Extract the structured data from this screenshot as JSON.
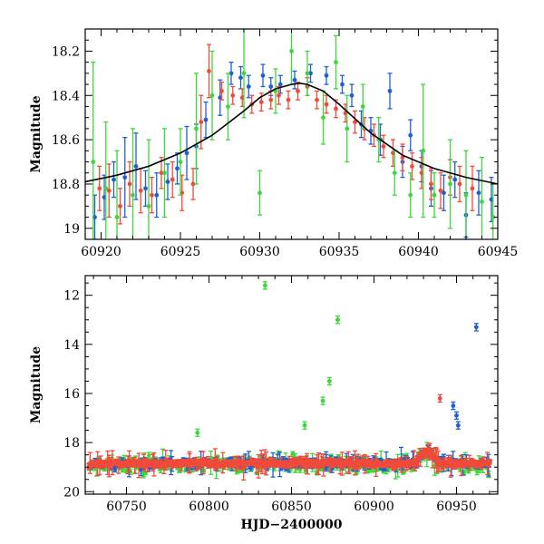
{
  "chart_data": [
    {
      "type": "scatter",
      "title": "",
      "xlabel": "",
      "ylabel": "Magnitude",
      "xlim": [
        60919,
        60945
      ],
      "ylim": [
        19.05,
        18.1
      ],
      "y_inverted": true,
      "xticks": [
        60920,
        60925,
        60930,
        60935,
        60940,
        60945
      ],
      "yticks": [
        18.2,
        18.4,
        18.6,
        18.8,
        19
      ],
      "ytick_labels": [
        "18.2",
        "18.4",
        "18.6",
        "18.8",
        "19"
      ],
      "colors": {
        "blue": "#1f5fd6",
        "red": "#f24a3a",
        "green": "#3ed63a",
        "model": "#000000"
      },
      "model_curve": {
        "x": [
          60919,
          60921,
          60923,
          60925,
          60927,
          60929,
          60930,
          60931,
          60932,
          60932.5,
          60933,
          60934,
          60935,
          60937,
          60939,
          60941,
          60943,
          60945
        ],
        "y": [
          18.79,
          18.76,
          18.72,
          18.66,
          18.58,
          18.47,
          18.41,
          18.37,
          18.35,
          18.345,
          18.35,
          18.38,
          18.44,
          18.57,
          18.67,
          18.73,
          18.77,
          18.8
        ]
      },
      "series": [
        {
          "color": "blue",
          "x": [
            60919.6,
            60920.2,
            60920.8,
            60921.5,
            60922.2,
            60922.8,
            60923.5,
            60924.2,
            60924.8,
            60925.4,
            60926.0,
            60926.6,
            60927.5,
            60928.2,
            60928.8,
            60929.3,
            60930.2,
            60930.7,
            60931.3,
            60932.2,
            60933.2,
            60934.2,
            60935.2,
            60935.8,
            60936.4,
            60937.0,
            60937.6,
            60938.2,
            60939.0,
            60939.5,
            60940.2,
            60940.8,
            60941.6,
            60942.3,
            60943.0,
            60943.8,
            60944.6
          ],
          "y": [
            18.95,
            18.86,
            18.78,
            18.77,
            18.72,
            18.82,
            18.85,
            18.79,
            18.73,
            18.66,
            18.63,
            18.51,
            18.41,
            18.3,
            18.32,
            18.36,
            18.31,
            18.36,
            18.35,
            18.33,
            18.3,
            18.31,
            18.35,
            18.4,
            18.53,
            18.56,
            18.6,
            18.38,
            18.7,
            18.58,
            18.72,
            18.82,
            18.84,
            18.78,
            18.94,
            18.84,
            18.87
          ],
          "err": [
            0.1,
            0.1,
            0.08,
            0.18,
            0.15,
            0.08,
            0.1,
            0.08,
            0.07,
            0.12,
            0.1,
            0.08,
            0.08,
            0.05,
            0.05,
            0.05,
            0.05,
            0.04,
            0.04,
            0.04,
            0.04,
            0.04,
            0.04,
            0.05,
            0.06,
            0.06,
            0.07,
            0.08,
            0.07,
            0.07,
            0.07,
            0.08,
            0.08,
            0.08,
            0.1,
            0.1,
            0.1
          ]
        },
        {
          "color": "red",
          "x": [
            60919.9,
            60920.5,
            60921.2,
            60921.8,
            60922.5,
            60923.2,
            60923.8,
            60924.5,
            60925.1,
            60925.8,
            60926.3,
            60926.8,
            60927.6,
            60928.3,
            60928.9,
            60929.5,
            60930.1,
            60930.7,
            60931.2,
            60931.8,
            60932.4,
            60933.0,
            60933.6,
            60934.2,
            60934.8,
            60935.4,
            60936.0,
            60936.6,
            60937.2,
            60937.8,
            60938.4,
            60939.0,
            60939.6,
            60940.2,
            60940.8,
            60941.4,
            60942.0,
            60942.6,
            60943.4
          ],
          "y": [
            18.82,
            18.83,
            18.9,
            18.8,
            18.83,
            18.85,
            18.75,
            18.78,
            18.84,
            18.8,
            18.52,
            18.29,
            18.38,
            18.4,
            18.41,
            18.44,
            18.43,
            18.42,
            18.4,
            18.42,
            18.38,
            18.36,
            18.42,
            18.44,
            18.46,
            18.48,
            18.52,
            18.55,
            18.58,
            18.63,
            18.66,
            18.68,
            18.72,
            18.75,
            18.8,
            18.83,
            18.77,
            18.8,
            18.82
          ],
          "err": [
            0.1,
            0.12,
            0.08,
            0.1,
            0.1,
            0.08,
            0.07,
            0.08,
            0.08,
            0.07,
            0.12,
            0.12,
            0.04,
            0.04,
            0.04,
            0.04,
            0.04,
            0.04,
            0.04,
            0.04,
            0.04,
            0.04,
            0.04,
            0.04,
            0.04,
            0.04,
            0.05,
            0.05,
            0.05,
            0.05,
            0.06,
            0.06,
            0.06,
            0.07,
            0.07,
            0.08,
            0.08,
            0.08,
            0.1
          ]
        },
        {
          "color": "green",
          "x": [
            60919.5,
            60920.3,
            60921.0,
            60922.0,
            60923.0,
            60924.0,
            60925.0,
            60926.0,
            60927.0,
            60928.0,
            60929.0,
            60930.0,
            60931.0,
            60932.0,
            60933.0,
            60934.0,
            60934.8,
            60935.5,
            60936.5,
            60937.5,
            60938.5,
            60939.5,
            60940.3,
            60941.0,
            60942.0,
            60943.0,
            60944.0,
            60944.7
          ],
          "y": [
            18.7,
            18.82,
            18.95,
            18.85,
            18.9,
            18.75,
            18.7,
            18.55,
            18.4,
            18.45,
            18.3,
            18.84,
            18.38,
            18.2,
            18.3,
            18.5,
            18.25,
            18.55,
            18.45,
            18.6,
            18.75,
            18.85,
            18.65,
            18.85,
            18.8,
            18.85,
            18.88,
            18.95
          ],
          "err": [
            0.45,
            0.3,
            0.3,
            0.3,
            0.3,
            0.2,
            0.15,
            0.25,
            0.2,
            0.15,
            0.2,
            0.1,
            0.1,
            0.15,
            0.1,
            0.12,
            0.12,
            0.15,
            0.1,
            0.1,
            0.1,
            0.1,
            0.3,
            0.1,
            0.2,
            0.2,
            0.2,
            0.15
          ]
        }
      ]
    },
    {
      "type": "scatter",
      "title": "",
      "xlabel": "HJD−2400000",
      "ylabel": "Magnitude",
      "xlim": [
        60725,
        60975
      ],
      "ylim": [
        20.1,
        11.2
      ],
      "y_inverted": true,
      "xticks": [
        60750,
        60800,
        60850,
        60900,
        60950
      ],
      "yticks": [
        12,
        14,
        16,
        18,
        20
      ],
      "colors": {
        "blue": "#1f5fd6",
        "red": "#f24a3a",
        "green": "#3ed63a"
      },
      "outliers": [
        {
          "color": "green",
          "x": 60834,
          "y": 11.6
        },
        {
          "color": "green",
          "x": 60878,
          "y": 13.0
        },
        {
          "color": "green",
          "x": 60873,
          "y": 15.5
        },
        {
          "color": "green",
          "x": 60869,
          "y": 16.3
        },
        {
          "color": "green",
          "x": 60858,
          "y": 17.3
        },
        {
          "color": "green",
          "x": 60793,
          "y": 17.6
        },
        {
          "color": "blue",
          "x": 60962,
          "y": 13.3
        },
        {
          "color": "blue",
          "x": 60948,
          "y": 16.5
        },
        {
          "color": "blue",
          "x": 60950,
          "y": 16.9
        },
        {
          "color": "blue",
          "x": 60951,
          "y": 17.3
        },
        {
          "color": "red",
          "x": 60940,
          "y": 16.2
        }
      ],
      "baseline": {
        "mag": 18.85,
        "scatter": 0.15
      },
      "outburst": {
        "x_start": 60919,
        "x_peak": 60932,
        "x_end": 60945,
        "mag_peak": 18.35
      }
    }
  ]
}
